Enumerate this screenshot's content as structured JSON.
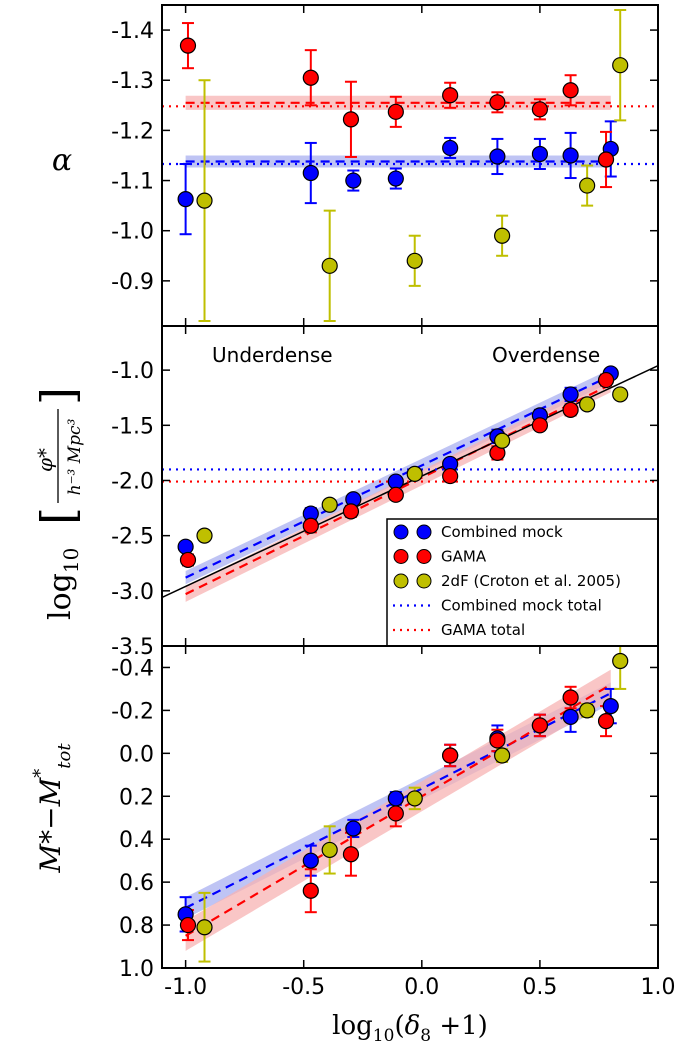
{
  "colors": {
    "mock": "#0000ff",
    "gama": "#ff0000",
    "twodf": "#bfbf00",
    "mock_band": "#aab0f0",
    "gama_band": "#f7b3b3",
    "black": "#000000"
  },
  "x_axis": {
    "label_prefix": "log",
    "label_sub": "10",
    "label_paren_open": "(",
    "label_delta": "δ",
    "label_delta_sub": "8",
    "label_rest": " +1)",
    "ticks": [
      "-1.0",
      "-0.5",
      "0.0",
      "0.5",
      "1.0"
    ],
    "tick_values": [
      -1.0,
      -0.5,
      0.0,
      0.5,
      1.0
    ],
    "range": [
      -1.1,
      1.0
    ]
  },
  "panels": {
    "alpha": {
      "ylabel": "α",
      "ticks": [
        "-1.4",
        "-1.3",
        "-1.2",
        "-1.1",
        "-1.0",
        "-0.9"
      ],
      "tick_values": [
        -1.4,
        -1.3,
        -1.2,
        -1.1,
        -1.0,
        -0.9
      ]
    },
    "phi": {
      "ylabel_log": "log",
      "ylabel_log_sub": "10",
      "ylabel_num": "φ*",
      "ylabel_den": "h⁻³ Mpc³",
      "ticks": [
        "-1.0",
        "-1.5",
        "-2.0",
        "-2.5",
        "-3.0",
        "-3.5"
      ],
      "tick_values": [
        -1.0,
        -1.5,
        -2.0,
        -2.5,
        -3.0,
        -3.5
      ],
      "annotation_left": "Underdense",
      "annotation_right": "Overdense"
    },
    "mstar": {
      "ylabel_main": "M*−M",
      "ylabel_sup": "*",
      "ylabel_sub": "tot",
      "ticks": [
        "-0.4",
        "-0.2",
        "0.0",
        "0.2",
        "0.4",
        "0.6",
        "0.8",
        "1.0"
      ],
      "tick_values": [
        -0.4,
        -0.2,
        0.0,
        0.2,
        0.4,
        0.6,
        0.8,
        1.0
      ]
    }
  },
  "legend": {
    "items": [
      {
        "label": "Combined mock",
        "kind": "marker",
        "color": "#0000ff"
      },
      {
        "label": "GAMA",
        "kind": "marker",
        "color": "#ff0000"
      },
      {
        "label": "2dF (Croton et al. 2005)",
        "kind": "marker",
        "color": "#bfbf00"
      },
      {
        "label": "Combined mock total",
        "kind": "dotted",
        "color": "#0000ff"
      },
      {
        "label": "GAMA total",
        "kind": "dotted",
        "color": "#ff0000"
      }
    ]
  },
  "chart_data": [
    {
      "type": "scatter",
      "panel": "alpha",
      "ylabel": "α",
      "ylim": [
        -1.45,
        -0.81
      ],
      "inverted_y": true,
      "xlim": [
        -1.1,
        1.0
      ],
      "grid": false,
      "series": [
        {
          "name": "Combined mock",
          "color": "#0000ff",
          "x": [
            -1.0,
            -0.47,
            -0.29,
            -0.11,
            0.12,
            0.32,
            0.5,
            0.63,
            0.8
          ],
          "y": [
            -1.063,
            -1.115,
            -1.1,
            -1.104,
            -1.165,
            -1.148,
            -1.153,
            -1.15,
            -1.163
          ],
          "yerr": [
            0.07,
            0.06,
            0.02,
            0.02,
            0.02,
            0.035,
            0.03,
            0.045,
            0.055
          ]
        },
        {
          "name": "GAMA",
          "color": "#ff0000",
          "x": [
            -0.99,
            -0.47,
            -0.3,
            -0.11,
            0.12,
            0.32,
            0.5,
            0.63,
            0.78
          ],
          "y": [
            -1.369,
            -1.305,
            -1.222,
            -1.237,
            -1.27,
            -1.256,
            -1.242,
            -1.28,
            -1.142
          ],
          "yerr": [
            0.045,
            0.055,
            0.075,
            0.03,
            0.025,
            0.02,
            0.02,
            0.03,
            0.055
          ]
        },
        {
          "name": "2dF (Croton et al. 2005)",
          "color": "#bfbf00",
          "x": [
            -0.92,
            -0.39,
            -0.03,
            0.34,
            0.7,
            0.84
          ],
          "y": [
            -1.06,
            -0.93,
            -0.94,
            -0.99,
            -1.09,
            -1.33
          ],
          "yerr": [
            0.24,
            0.11,
            0.05,
            0.04,
            0.04,
            0.11
          ]
        }
      ],
      "fit_lines": [
        {
          "series": "Combined mock",
          "color": "#0000ff",
          "x": [
            -1.0,
            0.8
          ],
          "y": [
            -1.138,
            -1.138
          ],
          "band": 0.012
        },
        {
          "series": "GAMA",
          "color": "#ff0000",
          "x": [
            -1.0,
            0.8
          ],
          "y": [
            -1.255,
            -1.255
          ],
          "band": 0.014
        }
      ],
      "total_lines": [
        {
          "name": "Combined mock total",
          "color": "#0000ff",
          "y": -1.133
        },
        {
          "name": "GAMA total",
          "color": "#ff0000",
          "y": -1.248
        }
      ]
    },
    {
      "type": "scatter",
      "panel": "phi",
      "ylabel": "log10[φ*/(h^-3 Mpc^3)]",
      "ylim": [
        -3.5,
        -0.6
      ],
      "xlim": [
        -1.1,
        1.0
      ],
      "grid": false,
      "series": [
        {
          "name": "Combined mock",
          "color": "#0000ff",
          "x": [
            -1.0,
            -0.47,
            -0.29,
            -0.11,
            0.12,
            0.32,
            0.5,
            0.63,
            0.8
          ],
          "y": [
            -2.6,
            -2.3,
            -2.17,
            -2.01,
            -1.85,
            -1.6,
            -1.41,
            -1.22,
            -1.03
          ],
          "yerr": [
            0.04,
            0.05,
            0.04,
            0.03,
            0.03,
            0.06,
            0.05,
            0.06,
            0.04
          ]
        },
        {
          "name": "GAMA",
          "color": "#ff0000",
          "x": [
            -0.99,
            -0.47,
            -0.3,
            -0.11,
            0.12,
            0.32,
            0.5,
            0.63,
            0.78
          ],
          "y": [
            -2.72,
            -2.41,
            -2.28,
            -2.13,
            -1.96,
            -1.75,
            -1.5,
            -1.36,
            -1.09
          ],
          "yerr": [
            0.05,
            0.06,
            0.05,
            0.04,
            0.05,
            0.06,
            0.04,
            0.05,
            0.05
          ]
        },
        {
          "name": "2dF (Croton et al. 2005)",
          "color": "#bfbf00",
          "x": [
            -0.92,
            -0.39,
            -0.03,
            0.34,
            0.7,
            0.84
          ],
          "y": [
            -2.5,
            -2.22,
            -1.94,
            -1.64,
            -1.31,
            -1.22
          ],
          "yerr": [
            0.02,
            0.02,
            0.02,
            0.02,
            0.02,
            0.02
          ]
        }
      ],
      "fit_lines": [
        {
          "series": "Combined mock",
          "color": "#0000ff",
          "x": [
            -1.0,
            0.8
          ],
          "y": [
            -2.88,
            -1.05
          ],
          "band": 0.06
        },
        {
          "series": "GAMA",
          "color": "#ff0000",
          "x": [
            -1.0,
            0.8
          ],
          "y": [
            -3.03,
            -1.13
          ],
          "band": 0.07
        }
      ],
      "reference_line": {
        "color": "#000000",
        "x": [
          -1.1,
          1.0
        ],
        "y": [
          -3.06,
          -0.96
        ]
      },
      "total_lines": [
        {
          "name": "Combined mock total",
          "color": "#0000ff",
          "y": -1.9
        },
        {
          "name": "GAMA total",
          "color": "#ff0000",
          "y": -2.01
        }
      ]
    },
    {
      "type": "scatter",
      "panel": "mstar",
      "ylabel": "M*−M*tot",
      "ylim": [
        1.0,
        -0.5
      ],
      "inverted_y": true,
      "xlim": [
        -1.1,
        1.0
      ],
      "grid": false,
      "series": [
        {
          "name": "Combined mock",
          "color": "#0000ff",
          "x": [
            -1.0,
            -0.47,
            -0.29,
            -0.11,
            0.12,
            0.32,
            0.5,
            0.63,
            0.8
          ],
          "y": [
            0.75,
            0.5,
            0.35,
            0.21,
            0.01,
            -0.07,
            -0.13,
            -0.17,
            -0.22
          ],
          "yerr": [
            0.08,
            0.07,
            0.04,
            0.03,
            0.05,
            0.06,
            0.05,
            0.07,
            0.08
          ]
        },
        {
          "name": "GAMA",
          "color": "#ff0000",
          "x": [
            -0.99,
            -0.47,
            -0.3,
            -0.11,
            0.12,
            0.32,
            0.5,
            0.63,
            0.78
          ],
          "y": [
            0.8,
            0.64,
            0.47,
            0.28,
            0.01,
            -0.06,
            -0.13,
            -0.26,
            -0.15
          ],
          "yerr": [
            0.07,
            0.1,
            0.1,
            0.06,
            0.05,
            0.05,
            0.05,
            0.05,
            0.07
          ]
        },
        {
          "name": "2dF (Croton et al. 2005)",
          "color": "#bfbf00",
          "x": [
            -0.92,
            -0.39,
            -0.03,
            0.34,
            0.7,
            0.84
          ],
          "y": [
            0.81,
            0.45,
            0.21,
            0.01,
            -0.2,
            -0.43
          ],
          "yerr": [
            0.16,
            0.11,
            0.05,
            0.03,
            0.03,
            0.13
          ]
        }
      ],
      "fit_lines": [
        {
          "series": "Combined mock",
          "color": "#0000ff",
          "x": [
            -1.0,
            0.8
          ],
          "y": [
            0.72,
            -0.28
          ],
          "band": 0.05
        },
        {
          "series": "GAMA",
          "color": "#ff0000",
          "x": [
            -1.0,
            0.8
          ],
          "y": [
            0.85,
            -0.32
          ],
          "band": 0.07
        }
      ]
    }
  ]
}
